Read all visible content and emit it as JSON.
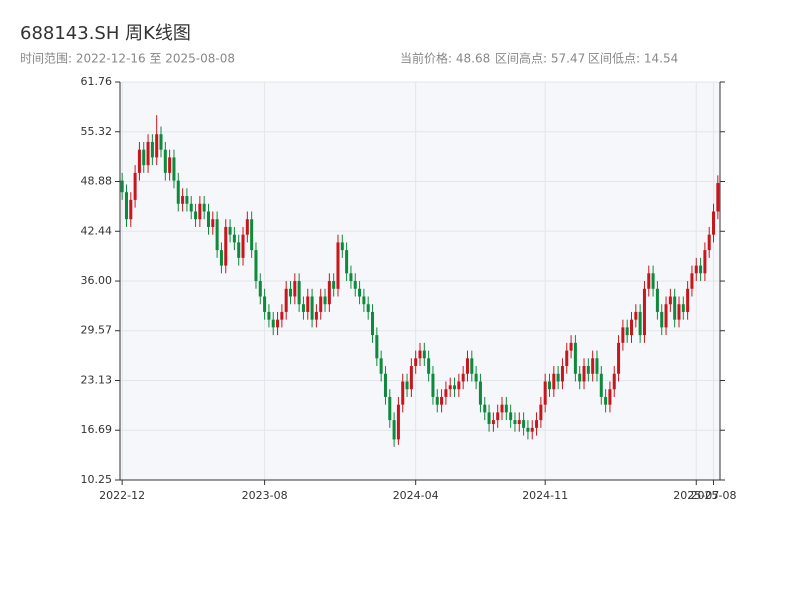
{
  "chart_data": {
    "type": "candlestick",
    "title": "688143.SH 周K线图",
    "subtitle": "时间范围: 2022-12-16 至 2025-08-08",
    "stats": [
      "当前价格: 48.68",
      "区间高点: 57.47",
      "区间低点: 14.54"
    ],
    "up_color": "#c8161d",
    "down_color": "#0e8a3c",
    "grid": true,
    "ylim": [
      10.25,
      61.76
    ],
    "yticks": [
      10.25,
      16.69,
      23.13,
      29.57,
      {
        "value": 36,
        "label": "36.00"
      },
      42.44,
      48.88,
      55.32,
      61.76
    ],
    "xticks": [
      {
        "value": "2022-12-16",
        "label": "2022-12"
      },
      {
        "value": "2023-08-04",
        "label": "2023-08"
      },
      {
        "value": "2024-04-05",
        "label": "2024-04"
      },
      {
        "value": "2024-11-01",
        "label": "2024-11"
      },
      {
        "value": "2025-07-04",
        "label": "2025-07"
      },
      {
        "value": "2025-08-01",
        "label": "2025-08"
      }
    ],
    "x": [
      "2022-12-16",
      "2022-12-23",
      "2022-12-30",
      "2023-01-06",
      "2023-01-13",
      "2023-01-20",
      "2023-01-27",
      "2023-02-03",
      "2023-02-10",
      "2023-02-17",
      "2023-02-24",
      "2023-03-03",
      "2023-03-10",
      "2023-03-17",
      "2023-03-24",
      "2023-03-31",
      "2023-04-07",
      "2023-04-14",
      "2023-04-21",
      "2023-04-28",
      "2023-05-05",
      "2023-05-12",
      "2023-05-19",
      "2023-05-26",
      "2023-06-02",
      "2023-06-09",
      "2023-06-16",
      "2023-06-23",
      "2023-06-30",
      "2023-07-07",
      "2023-07-14",
      "2023-07-21",
      "2023-07-28",
      "2023-08-04",
      "2023-08-11",
      "2023-08-18",
      "2023-08-25",
      "2023-09-01",
      "2023-09-08",
      "2023-09-15",
      "2023-09-22",
      "2023-09-29",
      "2023-10-06",
      "2023-10-13",
      "2023-10-20",
      "2023-10-27",
      "2023-11-03",
      "2023-11-10",
      "2023-11-17",
      "2023-11-24",
      "2023-12-01",
      "2023-12-08",
      "2023-12-15",
      "2023-12-22",
      "2023-12-29",
      "2024-01-05",
      "2024-01-12",
      "2024-01-19",
      "2024-01-26",
      "2024-02-02",
      "2024-02-09",
      "2024-02-16",
      "2024-02-23",
      "2024-03-01",
      "2024-03-08",
      "2024-03-15",
      "2024-03-22",
      "2024-03-29",
      "2024-04-05",
      "2024-04-12",
      "2024-04-19",
      "2024-04-26",
      "2024-05-03",
      "2024-05-10",
      "2024-05-17",
      "2024-05-24",
      "2024-05-31",
      "2024-06-07",
      "2024-06-14",
      "2024-06-21",
      "2024-06-28",
      "2024-07-05",
      "2024-07-12",
      "2024-07-19",
      "2024-07-26",
      "2024-08-02",
      "2024-08-09",
      "2024-08-16",
      "2024-08-23",
      "2024-08-30",
      "2024-09-06",
      "2024-09-13",
      "2024-09-20",
      "2024-09-27",
      "2024-10-04",
      "2024-10-11",
      "2024-10-18",
      "2024-10-25",
      "2024-11-01",
      "2024-11-08",
      "2024-11-15",
      "2024-11-22",
      "2024-11-29",
      "2024-12-06",
      "2024-12-13",
      "2024-12-20",
      "2024-12-27",
      "2025-01-03",
      "2025-01-10",
      "2025-01-17",
      "2025-01-24",
      "2025-01-31",
      "2025-02-07",
      "2025-02-14",
      "2025-02-21",
      "2025-02-28",
      "2025-03-07",
      "2025-03-14",
      "2025-03-21",
      "2025-03-28",
      "2025-04-04",
      "2025-04-11",
      "2025-04-18",
      "2025-04-25",
      "2025-05-02",
      "2025-05-09",
      "2025-05-16",
      "2025-05-23",
      "2025-05-30",
      "2025-06-06",
      "2025-06-13",
      "2025-06-20",
      "2025-06-27",
      "2025-07-04",
      "2025-07-11",
      "2025-07-18",
      "2025-07-25",
      "2025-08-01",
      "2025-08-08"
    ],
    "open": [
      49,
      47.5,
      44,
      46.5,
      50,
      53,
      51,
      54,
      52,
      55,
      53,
      50,
      52,
      49,
      46,
      47,
      46,
      45,
      44,
      46,
      45,
      43,
      44,
      40,
      38,
      43,
      42,
      41,
      39,
      42,
      44,
      40,
      36,
      34,
      32,
      31,
      30,
      31,
      32,
      35,
      34,
      36,
      33,
      32,
      34,
      31,
      32,
      34,
      33,
      36,
      35,
      41,
      40,
      37,
      36,
      35,
      34,
      33,
      32,
      29,
      26,
      24,
      21,
      18,
      15.5,
      20,
      23,
      22,
      25,
      26,
      27,
      26,
      24,
      21,
      20,
      21,
      22,
      22.5,
      22,
      23,
      24,
      26,
      24,
      23,
      20,
      19,
      17.5,
      18,
      19,
      20,
      19,
      18,
      17.5,
      18,
      17,
      16.5,
      17,
      18,
      20,
      23,
      22,
      24,
      23,
      25,
      27,
      28,
      24,
      23,
      25,
      24,
      26,
      24,
      21,
      20,
      22,
      24,
      28,
      30,
      29,
      31,
      32,
      29,
      35,
      37,
      35,
      32,
      30,
      33,
      34,
      31,
      33,
      32,
      35,
      37,
      38,
      37,
      40,
      42,
      45
    ],
    "high": [
      50,
      48.5,
      47.5,
      51,
      54,
      54,
      55,
      55,
      57.47,
      56,
      54,
      53,
      53,
      50,
      48,
      48,
      47,
      46,
      47,
      47,
      46,
      45,
      45,
      41,
      44,
      44,
      43,
      42,
      43,
      45,
      45,
      41,
      37,
      35,
      33,
      32,
      32,
      33,
      36,
      36,
      37,
      37,
      34,
      35,
      35,
      33,
      35,
      35,
      37,
      37,
      42,
      42,
      41,
      38,
      37,
      36,
      35,
      34,
      33,
      30,
      27,
      25,
      22,
      19,
      21,
      24,
      24,
      26,
      27,
      28,
      28,
      27,
      25,
      22,
      22,
      23,
      23.5,
      23.5,
      24,
      25,
      27,
      27,
      25,
      24,
      21,
      20,
      19,
      20,
      21,
      21,
      20,
      19,
      19,
      19,
      18,
      18,
      19,
      21,
      24,
      24,
      25,
      25,
      26,
      28,
      29,
      29,
      25,
      26,
      26,
      27,
      27,
      25,
      22,
      23,
      25,
      29,
      31,
      31,
      32,
      33,
      33,
      36,
      38,
      38,
      36,
      33,
      34,
      35,
      35,
      34,
      34,
      36,
      38,
      39,
      39,
      41,
      43,
      46,
      49.68
    ],
    "low": [
      46.5,
      43,
      43,
      45.5,
      49,
      50,
      50,
      51,
      51,
      52,
      49,
      49,
      48,
      45,
      45,
      45,
      44,
      43,
      43,
      44,
      42,
      42,
      39,
      37,
      37,
      41,
      40,
      38,
      38,
      41,
      39,
      35,
      33,
      31,
      30,
      29,
      29,
      30,
      31,
      33,
      33,
      32,
      31,
      31,
      30,
      30,
      31,
      32,
      32,
      34,
      34,
      39,
      36,
      35,
      34,
      33,
      32,
      31,
      28,
      25,
      23,
      20,
      17,
      14.54,
      14.8,
      19,
      21,
      21,
      24,
      25,
      25,
      23,
      20,
      19,
      19,
      20,
      21,
      21,
      21,
      22,
      23,
      23,
      22,
      19,
      18,
      16.5,
      16.5,
      17,
      18,
      18,
      17,
      16.5,
      16.5,
      16,
      15.5,
      15.5,
      16,
      17,
      19,
      21,
      21,
      22,
      22,
      24,
      26,
      23,
      22,
      22,
      23,
      23,
      23,
      20,
      19,
      19,
      21,
      23,
      27,
      28,
      28,
      30,
      28,
      28,
      34,
      34,
      31,
      29,
      29,
      32,
      30,
      30,
      31,
      31,
      34,
      36,
      36,
      36,
      39,
      41,
      44
    ],
    "close": [
      47.5,
      44,
      46.5,
      50,
      53,
      51,
      54,
      52,
      55,
      53,
      50,
      52,
      49,
      46,
      47,
      46,
      45,
      44,
      46,
      45,
      43,
      44,
      40,
      38,
      43,
      42,
      41,
      39,
      42,
      44,
      40,
      36,
      34,
      32,
      31,
      30,
      31,
      32,
      35,
      34,
      36,
      33,
      32,
      34,
      31,
      32,
      34,
      33,
      36,
      35,
      41,
      40,
      37,
      36,
      35,
      34,
      33,
      32,
      29,
      26,
      24,
      21,
      18,
      15.5,
      20,
      23,
      22,
      25,
      26,
      27,
      26,
      24,
      21,
      20,
      21,
      22,
      22.5,
      22,
      23,
      24,
      26,
      24,
      23,
      20,
      19,
      17.5,
      18,
      19,
      20,
      19,
      18,
      17.5,
      18,
      17,
      16.5,
      17,
      18,
      20,
      23,
      22,
      24,
      23,
      25,
      27,
      28,
      24,
      23,
      25,
      24,
      26,
      24,
      21,
      20,
      22,
      24,
      28,
      30,
      29,
      31,
      32,
      29,
      35,
      37,
      35,
      32,
      30,
      33,
      34,
      31,
      33,
      32,
      35,
      37,
      38,
      37,
      40,
      42,
      45,
      48.68
    ]
  }
}
